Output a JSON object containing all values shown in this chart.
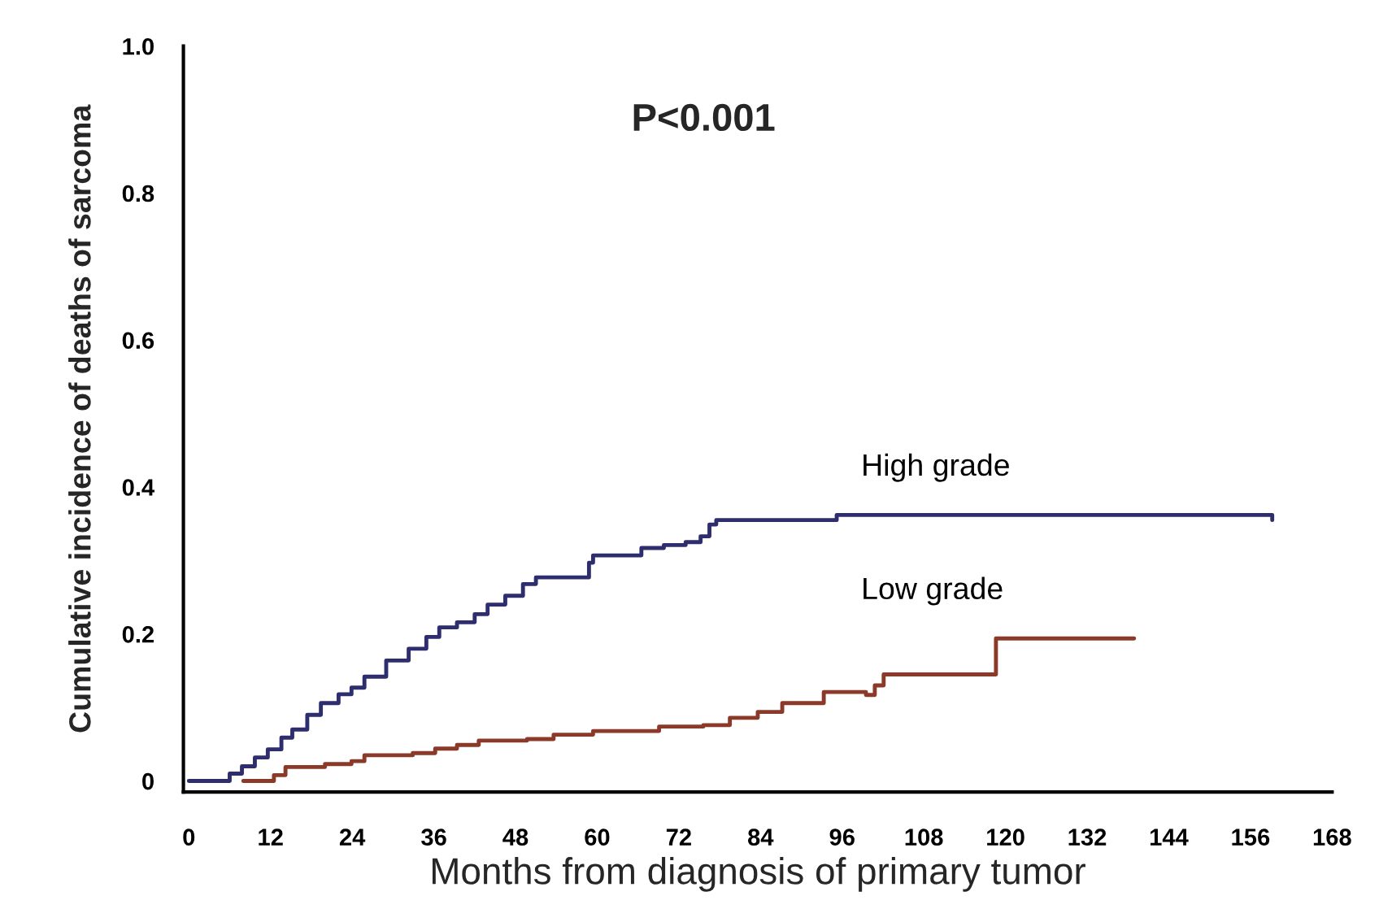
{
  "chart_data": {
    "type": "step",
    "xlabel": "Months from diagnosis of primary tumor",
    "ylabel": "Cumulative incidence of deaths of sarcoma",
    "annotations": [
      "P<0.001"
    ],
    "xlim": [
      -0.8,
      168
    ],
    "xticks": [
      0,
      12,
      24,
      36,
      48,
      60,
      72,
      84,
      96,
      108,
      120,
      132,
      144,
      156,
      168
    ],
    "ylim": [
      -0.015,
      1.0
    ],
    "yticks": [
      0,
      {
        "value": 0.2,
        "label": "0.2"
      },
      {
        "value": 0.4,
        "label": "0.4"
      },
      {
        "value": 0.6,
        "label": "0.6"
      },
      {
        "value": 0.8,
        "label": "0.8"
      },
      {
        "value": 1.0,
        "label": "1.0"
      }
    ],
    "grid": false,
    "legend": false,
    "series": [
      {
        "name": "High grade",
        "color": "#2e2e6e",
        "x": [
          0,
          2.6,
          6,
          7.8,
          9.7,
          11.6,
          13.6,
          15.2,
          17.4,
          19.4,
          22,
          23.9,
          25.8,
          29,
          32.3,
          34.9,
          36.8,
          39.4,
          42,
          43.9,
          46.5,
          49.1,
          51,
          56.8,
          58.8,
          59.4,
          64.2,
          66.5,
          69.8,
          73,
          75.2,
          76.5,
          77.5,
          95,
          95.2,
          135.7,
          159.2
        ],
        "values": [
          0,
          0,
          0.01,
          0.02,
          0.032,
          0.043,
          0.059,
          0.07,
          0.09,
          0.106,
          0.118,
          0.127,
          0.142,
          0.164,
          0.18,
          0.196,
          0.209,
          0.216,
          0.227,
          0.24,
          0.252,
          0.268,
          0.277,
          0.277,
          0.297,
          0.307,
          0.307,
          0.317,
          0.321,
          0.325,
          0.333,
          0.349,
          0.355,
          0.355,
          0.362,
          0.362,
          0.355
        ]
      },
      {
        "name": "Low grade",
        "color": "#8b3a2a",
        "x": [
          8,
          11,
          12.5,
          14.2,
          20,
          23.9,
          25.8,
          32.9,
          36.2,
          39.4,
          42.6,
          49.7,
          53.6,
          59.4,
          69.1,
          75.6,
          79.5,
          83.6,
          87.2,
          93.3,
          99.5,
          100.8,
          102.1,
          118.6,
          138.9
        ],
        "values": [
          0,
          0,
          0.008,
          0.019,
          0.023,
          0.027,
          0.035,
          0.038,
          0.044,
          0.049,
          0.055,
          0.057,
          0.063,
          0.068,
          0.074,
          0.076,
          0.086,
          0.094,
          0.106,
          0.121,
          0.117,
          0.13,
          0.145,
          0.194,
          0.194
        ]
      }
    ]
  }
}
